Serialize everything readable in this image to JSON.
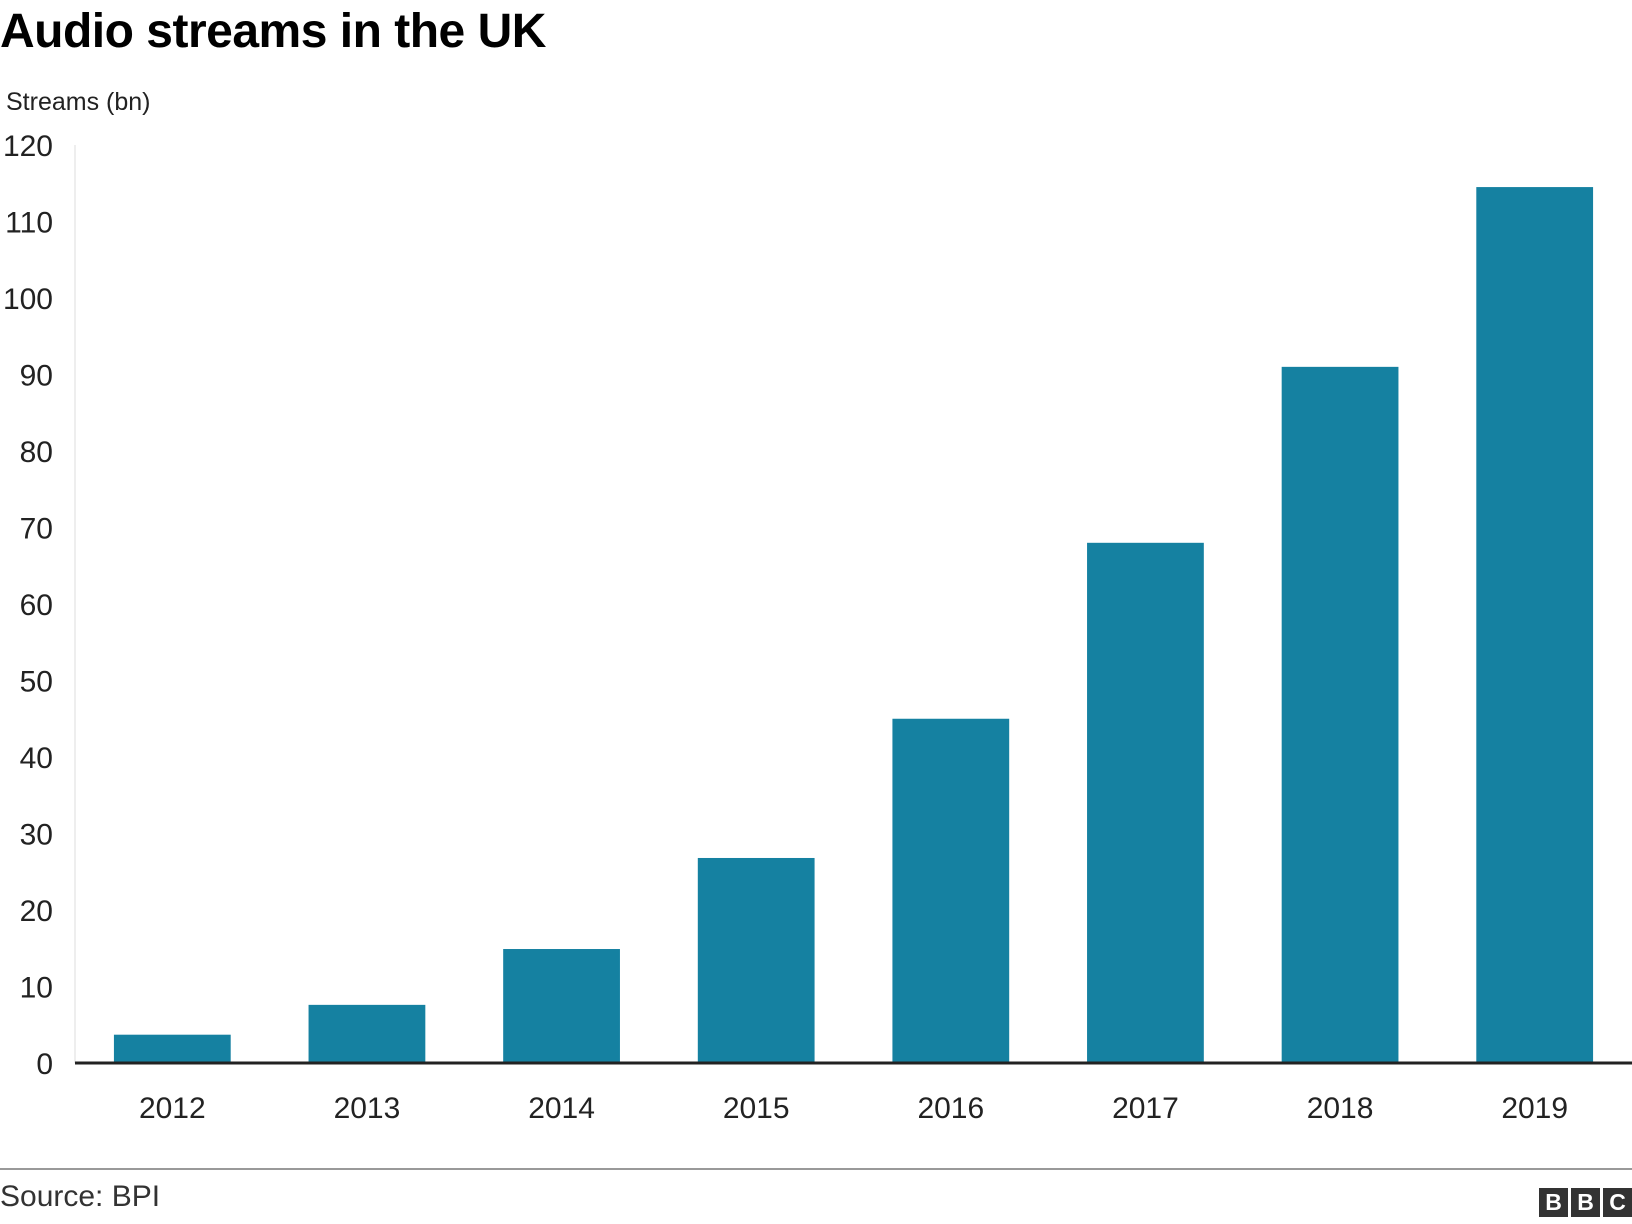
{
  "title": "Audio streams in the UK",
  "source": "Source: BPI",
  "logo": [
    "B",
    "B",
    "C"
  ],
  "colors": {
    "bar": "#1581A1",
    "axis": "#222222",
    "grid": "#DDDDDD"
  },
  "chart_data": {
    "type": "bar",
    "title": "Audio streams in the UK",
    "xlabel": "",
    "ylabel": "Streams (bn)",
    "categories": [
      "2012",
      "2013",
      "2014",
      "2015",
      "2016",
      "2017",
      "2018",
      "2019"
    ],
    "values": [
      3.7,
      7.6,
      14.9,
      26.8,
      45.0,
      68.0,
      91.0,
      114.5
    ],
    "ylim": [
      0,
      120
    ],
    "yticks": [
      0,
      10,
      20,
      30,
      40,
      50,
      60,
      70,
      80,
      90,
      100,
      110,
      120
    ],
    "grid": false,
    "legend": "none"
  }
}
